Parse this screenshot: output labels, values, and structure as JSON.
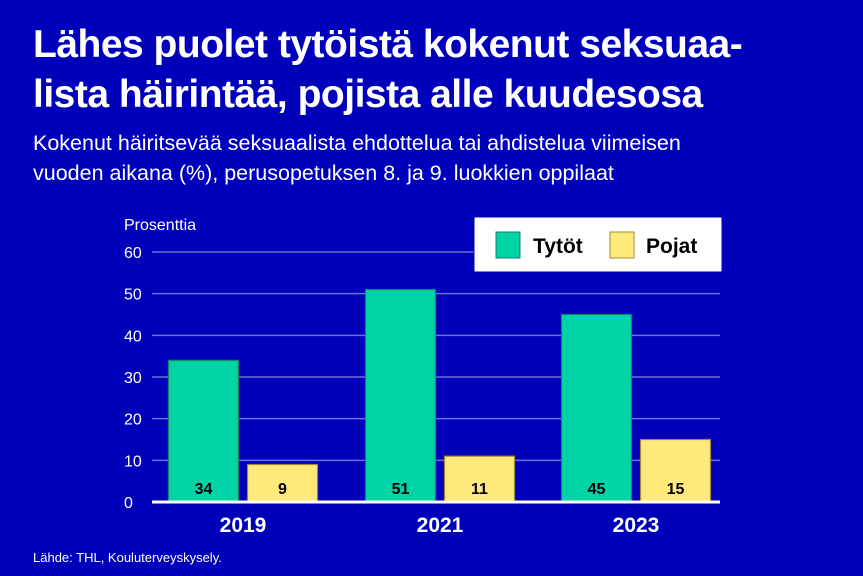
{
  "title": "Lähes puolet tytöistä kokenut seksuaa-lista häirintää, pojista alle kuudesosa",
  "title_lines": [
    "Lähes puolet tytöistä kokenut seksuaa-",
    "lista häirintää, pojista alle kuudesosa"
  ],
  "subtitle_lines": [
    "Kokenut häiritsevää seksuaalista ehdottelua tai ahdistelua viimeisen",
    "vuoden aikana (%), perusopetuksen 8. ja 9. luokkien oppilaat"
  ],
  "source": "Lähde: THL, Kouluterveyskysely.",
  "colors": {
    "background": "#0000BB",
    "tytot": "#00D4A6",
    "pojat": "#FFE97A",
    "grid": "#6F6FD8"
  },
  "chart_data": {
    "type": "bar",
    "title": "Lähes puolet tytöistä kokenut seksuaalista häirintää, pojista alle kuudesosa",
    "ylabel": "Prosenttia",
    "xlabel": "",
    "categories": [
      "2019",
      "2021",
      "2023"
    ],
    "series": [
      {
        "name": "Tytöt",
        "values": [
          34,
          51,
          45
        ]
      },
      {
        "name": "Pojat",
        "values": [
          9,
          11,
          15
        ]
      }
    ],
    "ylim": [
      0,
      60
    ],
    "yticks": [
      0,
      10,
      20,
      30,
      40,
      50,
      60
    ],
    "grid": true,
    "legend": "top-right"
  }
}
